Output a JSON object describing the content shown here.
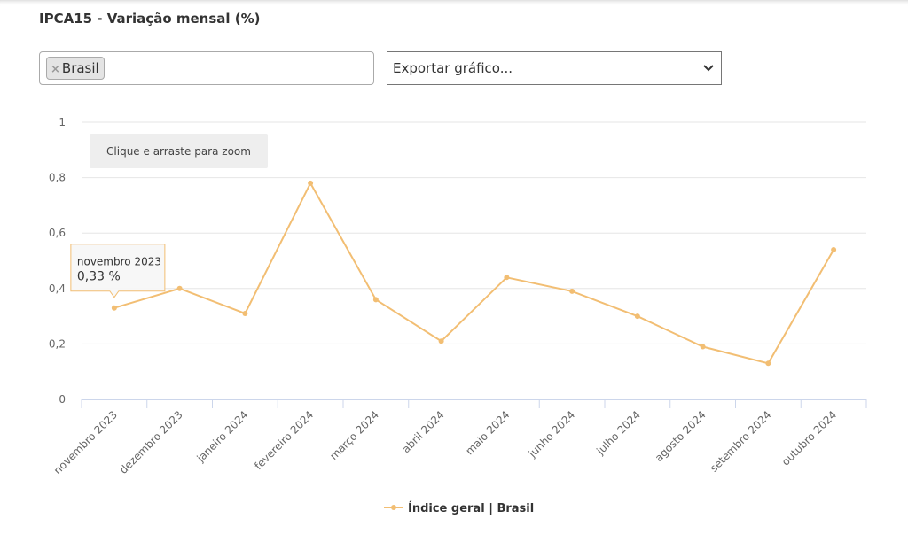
{
  "page_title": "IPCA15 - Variação mensal (%)",
  "filter": {
    "remove_icon": "×",
    "selected": "Brasil"
  },
  "export_select": "Exportar gráfico...",
  "zoom_hint": "Clique e arraste para zoom",
  "chart_data": {
    "type": "line",
    "categories": [
      "novembro 2023",
      "dezembro 2023",
      "janeiro 2024",
      "fevereiro 2024",
      "março 2024",
      "abril 2024",
      "maio 2024",
      "junho 2024",
      "julho 2024",
      "agosto 2024",
      "setembro 2024",
      "outubro 2024"
    ],
    "series": [
      {
        "name": "Índice geral | Brasil",
        "color": "#f2be73",
        "values": [
          0.33,
          0.4,
          0.31,
          0.78,
          0.36,
          0.21,
          0.44,
          0.39,
          0.3,
          0.19,
          0.13,
          0.54
        ]
      }
    ],
    "ylim": [
      0,
      1
    ],
    "yticks": [
      0,
      {
        "value": 0.2,
        "label": "0,2"
      },
      {
        "value": 0.4,
        "label": "0,4"
      },
      {
        "value": 0.6,
        "label": "0,6"
      },
      {
        "value": 0.8,
        "label": "0,8"
      },
      1
    ],
    "grid": true,
    "legend": "bottom",
    "tooltip_label": "0,33 %"
  }
}
